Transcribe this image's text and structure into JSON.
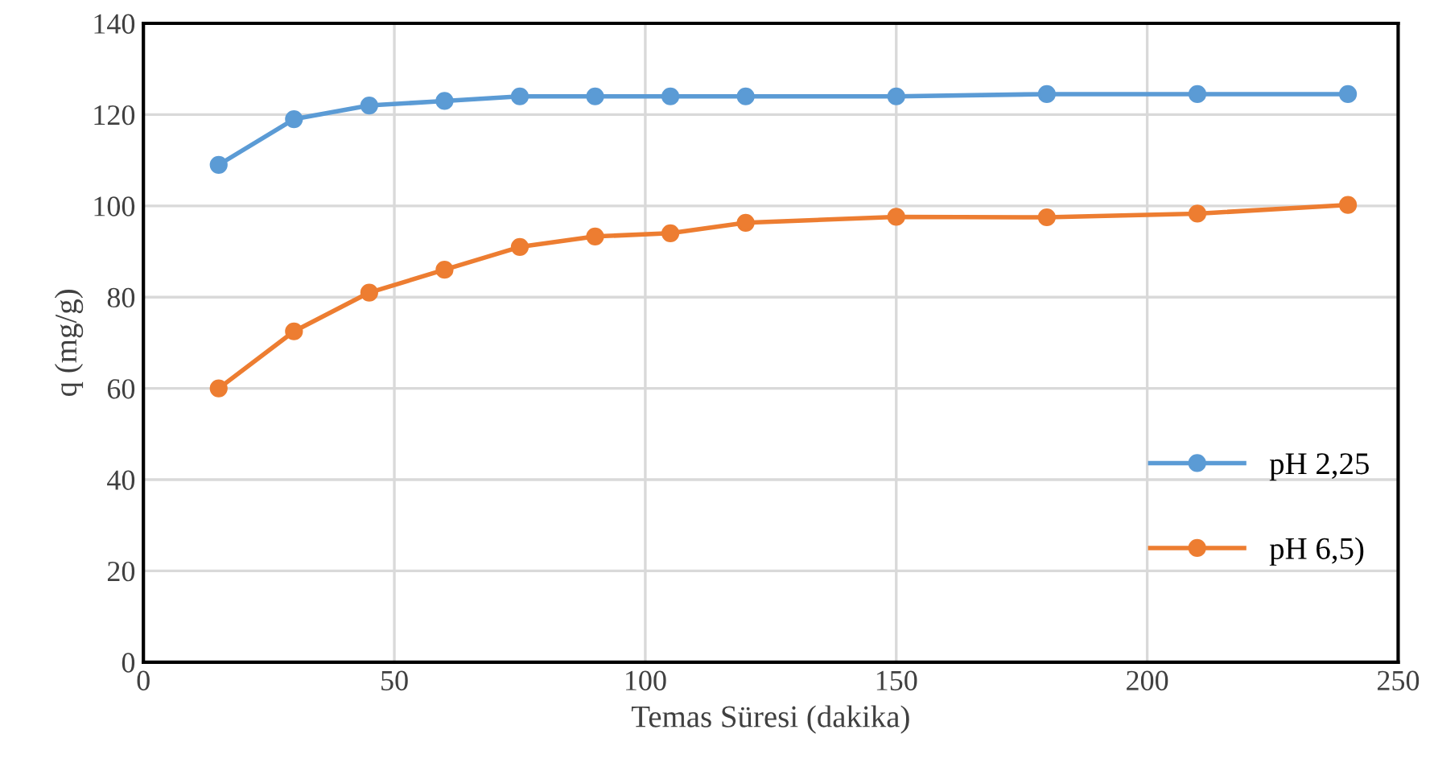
{
  "chart_data": {
    "type": "line",
    "xlabel": "Temas Süresi (dakika)",
    "ylabel": "q (mg/g)",
    "x": [
      15,
      30,
      45,
      60,
      75,
      90,
      105,
      120,
      150,
      180,
      210,
      240
    ],
    "series": [
      {
        "name": "pH 2,25",
        "color": "#5b9bd5",
        "values": [
          109,
          119,
          122,
          123,
          124,
          124,
          124,
          124,
          124,
          124.5,
          124.5,
          124.5
        ]
      },
      {
        "name": "pH 6,5)",
        "color": "#ed7d31",
        "values": [
          60,
          72.5,
          81,
          86,
          91,
          93.3,
          94,
          96.3,
          97.6,
          97.5,
          98.3,
          100.2
        ]
      }
    ],
    "xlim": [
      0,
      250
    ],
    "xticks": [
      0,
      50,
      100,
      150,
      200,
      250
    ],
    "ylim": [
      0,
      140
    ],
    "yticks": [
      0,
      20,
      40,
      60,
      80,
      100,
      120,
      140
    ],
    "grid": true,
    "legend": "right",
    "marker": "circle",
    "line_style": "solid"
  }
}
